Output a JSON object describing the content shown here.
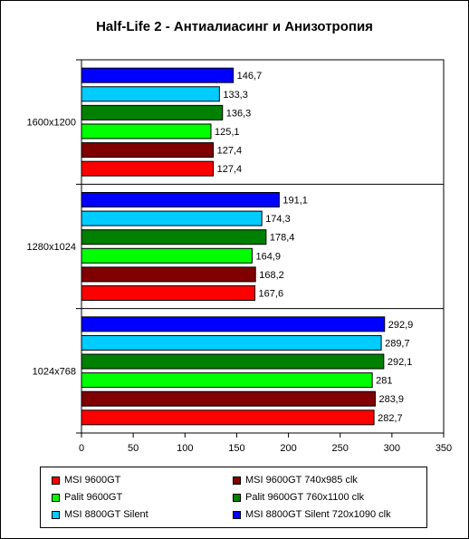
{
  "chart_data": {
    "type": "bar",
    "orientation": "horizontal",
    "title": "Half-Life 2 - Антиалиасинг и Анизотропия",
    "xlabel": "",
    "ylabel": "",
    "xlim": [
      0,
      350
    ],
    "xticks": [
      "0",
      "50",
      "100",
      "150",
      "200",
      "250",
      "300",
      "350"
    ],
    "categories": [
      "1600x1200",
      "1280x1024",
      "1024x768"
    ],
    "grid": false,
    "legend_position": "bottom",
    "series": [
      {
        "name": "MSI 8800GT Silent 720x1090 clk",
        "color": "#0000ff",
        "values": [
          146.7,
          191.1,
          292.9
        ],
        "labels": [
          "146,7",
          "191,1",
          "292,9"
        ]
      },
      {
        "name": "MSI 8800GT Silent",
        "color": "#00ccff",
        "values": [
          133.3,
          174.3,
          289.7
        ],
        "labels": [
          "133,3",
          "174,3",
          "289,7"
        ]
      },
      {
        "name": "Palit 9600GT 760x1100 clk",
        "color": "#008000",
        "values": [
          136.3,
          178.4,
          292.1
        ],
        "labels": [
          "136,3",
          "178,4",
          "292,1"
        ]
      },
      {
        "name": "Palit 9600GT",
        "color": "#00ff00",
        "values": [
          125.1,
          164.9,
          281
        ],
        "labels": [
          "125,1",
          "164,9",
          "281"
        ]
      },
      {
        "name": "MSI 9600GT 740x985 clk",
        "color": "#800000",
        "values": [
          127.4,
          168.2,
          283.9
        ],
        "labels": [
          "127,4",
          "168,2",
          "283,9"
        ]
      },
      {
        "name": "MSI 9600GT",
        "color": "#ff0000",
        "values": [
          127.4,
          167.6,
          282.7
        ],
        "labels": [
          "127,4",
          "167,6",
          "282,7"
        ]
      }
    ],
    "legend_order": [
      "MSI 9600GT",
      "MSI 9600GT 740x985 clk",
      "Palit 9600GT",
      "Palit 9600GT 760x1100 clk",
      "MSI 8800GT Silent",
      "MSI 8800GT Silent 720x1090 clk"
    ]
  }
}
